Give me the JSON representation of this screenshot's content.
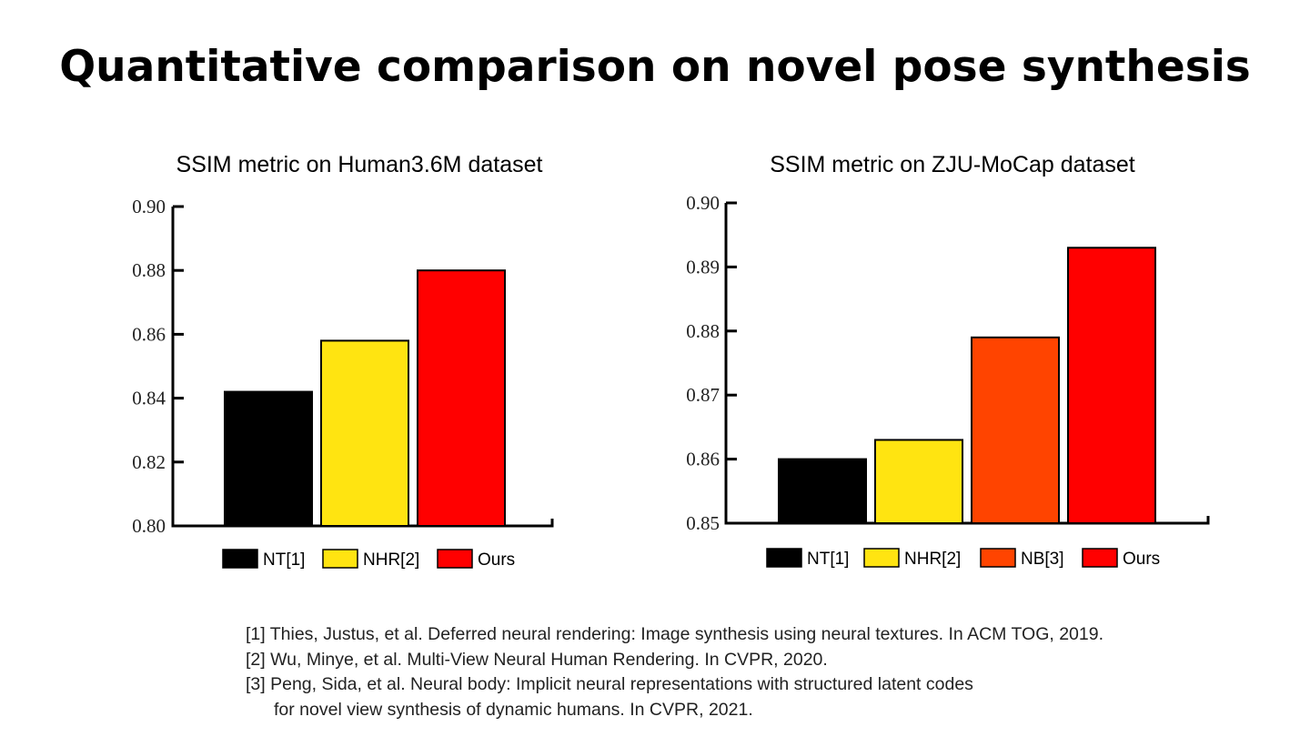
{
  "slide": {
    "title": "Quantitative comparison on novel pose synthesis"
  },
  "chart_data": [
    {
      "type": "bar",
      "title": "SSIM metric on Human3.6M dataset",
      "categories": [
        "NT[1]",
        "NHR[2]",
        "Ours"
      ],
      "values": [
        0.842,
        0.858,
        0.88
      ],
      "colors": [
        "#000000",
        "#FFE411",
        "#FF0000"
      ],
      "ylim": [
        0.8,
        0.9
      ],
      "yticks": [
        "0.90",
        "0.88",
        "0.86",
        "0.84",
        "0.82",
        "0.80"
      ],
      "ytick_values": [
        0.9,
        0.88,
        0.86,
        0.84,
        0.82,
        0.8
      ],
      "legend": [
        "NT[1]",
        "NHR[2]",
        "Ours"
      ],
      "legend_position": "bottom",
      "xlabel": "",
      "ylabel": ""
    },
    {
      "type": "bar",
      "title": "SSIM metric on ZJU-MoCap dataset",
      "categories": [
        "NT[1]",
        "NHR[2]",
        "NB[3]",
        "Ours"
      ],
      "values": [
        0.86,
        0.863,
        0.879,
        0.893
      ],
      "colors": [
        "#000000",
        "#FFE411",
        "#FF4400",
        "#FF0000"
      ],
      "ylim": [
        0.85,
        0.9
      ],
      "yticks": [
        "0.90",
        "0.89",
        "0.88",
        "0.87",
        "0.86",
        "0.85"
      ],
      "ytick_values": [
        0.9,
        0.89,
        0.88,
        0.87,
        0.86,
        0.85
      ],
      "legend": [
        "NT[1]",
        "NHR[2]",
        "NB[3]",
        "Ours"
      ],
      "legend_position": "bottom",
      "xlabel": "",
      "ylabel": ""
    }
  ],
  "references": {
    "ref1": "[1] Thies, Justus, et al. Deferred neural rendering: Image synthesis using neural textures. In ACM TOG, 2019.",
    "ref2": "[2] Wu, Minye, et al. Multi-View Neural Human Rendering. In CVPR, 2020.",
    "ref3_line1": "[3] Peng, Sida, et al. Neural body: Implicit neural representations with structured latent codes",
    "ref3_line2": "for novel view synthesis of dynamic humans. In CVPR, 2021."
  }
}
